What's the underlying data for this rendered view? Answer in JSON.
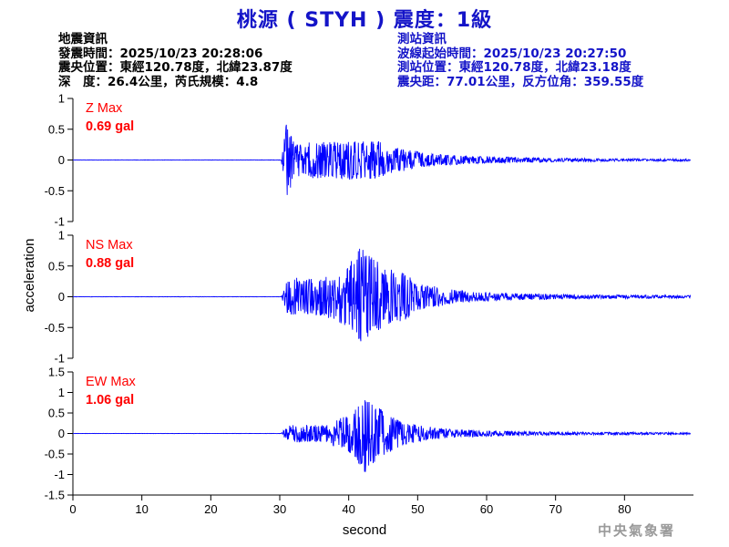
{
  "title": "桃源 ( STYH ) 震度：1級",
  "quake_info": {
    "heading": "地震資訊",
    "origin_time": "發震時間：2025/10/23 20:28:06",
    "epicenter": "震央位置：東經120.78度，北緯23.87度",
    "depth_magnitude": "深　度：26.4公里，芮氏規模：4.8"
  },
  "station_info": {
    "heading": "測站資訊",
    "wave_start": "波線起始時間：2025/10/23 20:27:50",
    "location": "測站位置：東經120.78度，北緯23.18度",
    "distance_azimuth": "震央距：77.01公里，反方位角：359.55度"
  },
  "watermark": "中央氣象署",
  "colors": {
    "title": "#1414c8",
    "trace": "#0000ff",
    "max_label": "#ff0000",
    "axis": "#000000"
  },
  "chart_data": {
    "type": "line",
    "xlabel": "second",
    "ylabel": "acceleration",
    "xlim": [
      0,
      90
    ],
    "xticks": [
      0,
      10,
      20,
      30,
      40,
      50,
      60,
      70,
      80
    ],
    "grid": false,
    "panels": [
      {
        "component": "Z",
        "max_label": "Z Max",
        "max_value": "0.69 gal",
        "ylim": [
          -1,
          1
        ],
        "yticks": [
          1,
          0.5,
          0,
          -0.5,
          -1
        ],
        "ytick_labels": [
          "1",
          "0.5",
          "0",
          "-0.5",
          "-1"
        ],
        "envelope": {
          "t": [
            0,
            30.2,
            30.5,
            31.0,
            32,
            33,
            35,
            38,
            40,
            42,
            44,
            46,
            48,
            50,
            52,
            55,
            58,
            62,
            66,
            70,
            75,
            80,
            90
          ],
          "amp": [
            0.004,
            0.004,
            0.22,
            0.65,
            0.3,
            0.28,
            0.3,
            0.3,
            0.33,
            0.3,
            0.34,
            0.22,
            0.18,
            0.14,
            0.1,
            0.08,
            0.06,
            0.05,
            0.04,
            0.03,
            0.025,
            0.02,
            0.02
          ]
        }
      },
      {
        "component": "NS",
        "max_label": "NS Max",
        "max_value": "0.88 gal",
        "ylim": [
          -1,
          1
        ],
        "yticks": [
          1,
          0.5,
          0,
          -0.5,
          -1
        ],
        "ytick_labels": [
          "1",
          "0.5",
          "0",
          "-0.5",
          "-1"
        ],
        "envelope": {
          "t": [
            0,
            30.2,
            30.6,
            31.2,
            32,
            34,
            36,
            38,
            40,
            41.5,
            42.5,
            44,
            46,
            48,
            50,
            52,
            55,
            58,
            62,
            66,
            70,
            75,
            80,
            90
          ],
          "amp": [
            0.004,
            0.004,
            0.12,
            0.3,
            0.32,
            0.28,
            0.32,
            0.38,
            0.5,
            0.82,
            0.72,
            0.58,
            0.45,
            0.4,
            0.22,
            0.18,
            0.12,
            0.08,
            0.06,
            0.05,
            0.04,
            0.03,
            0.03,
            0.02
          ]
        }
      },
      {
        "component": "EW",
        "max_label": "EW Max",
        "max_value": "1.06 gal",
        "ylim": [
          -1.5,
          1.5
        ],
        "yticks": [
          1.5,
          1,
          0.5,
          0,
          -0.5,
          -1,
          -1.5
        ],
        "ytick_labels": [
          "1.5",
          "1",
          "0.5",
          "0",
          "-0.5",
          "-1",
          "-1.5"
        ],
        "envelope": {
          "t": [
            0,
            30.2,
            30.6,
            31.5,
            33,
            35,
            37,
            39,
            41,
            42.2,
            43,
            45,
            47,
            49,
            51,
            53,
            56,
            60,
            65,
            70,
            75,
            80,
            90
          ],
          "amp": [
            0.004,
            0.004,
            0.1,
            0.2,
            0.22,
            0.2,
            0.25,
            0.4,
            0.65,
            1.02,
            0.8,
            0.55,
            0.35,
            0.25,
            0.18,
            0.14,
            0.1,
            0.07,
            0.05,
            0.04,
            0.03,
            0.03,
            0.02
          ]
        }
      }
    ]
  }
}
